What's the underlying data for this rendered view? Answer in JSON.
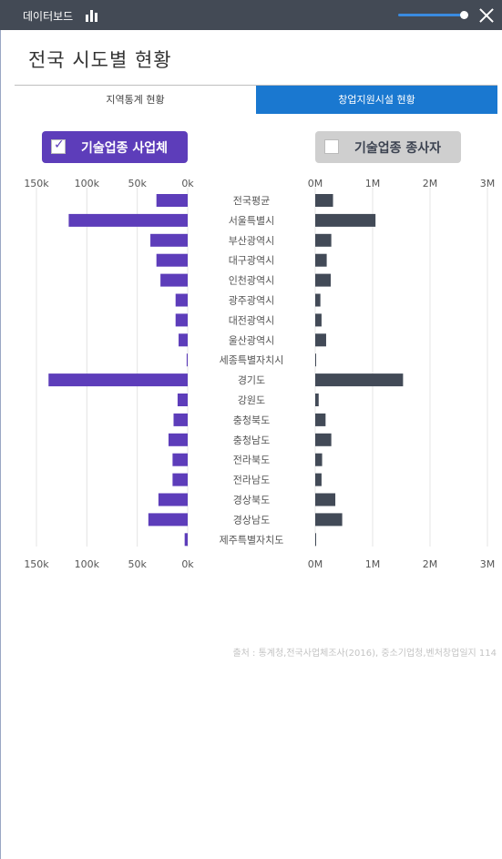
{
  "app": {
    "title": "데이터보드",
    "icon": "bar-chart-icon",
    "zoom_level": 0.9
  },
  "page": {
    "title": "전국 시도별 현황"
  },
  "tabs": [
    {
      "label": "지역통계 현황",
      "active": false
    },
    {
      "label": "창업지원시설 현황",
      "active": true
    }
  ],
  "toggles": {
    "left": {
      "label": "기술업종 사업체",
      "checked": true
    },
    "right": {
      "label": "기술업종 종사자",
      "checked": false
    }
  },
  "colors": {
    "accent": "#1a78d0",
    "business": "#5d3dba",
    "workers": "#424a57",
    "topbar": "#434a55"
  },
  "chart_data": {
    "type": "bar",
    "orientation": "horizontal",
    "grid": true,
    "categories": [
      "전국평균",
      "서울특별시",
      "부산광역시",
      "대구광역시",
      "인천광역시",
      "광주광역시",
      "대전광역시",
      "울산광역시",
      "세종특별자치시",
      "경기도",
      "강원도",
      "충청북도",
      "충청남도",
      "전라북도",
      "전라남도",
      "경상북도",
      "경상남도",
      "제주특별자치도"
    ],
    "left": {
      "series_name": "기술업종 사업체",
      "xlim": [
        150000,
        0
      ],
      "ticks": [
        150000,
        100000,
        50000,
        0
      ],
      "tick_labels": [
        "150k",
        "100k",
        "50k",
        "0k"
      ],
      "values": [
        31000,
        118000,
        37000,
        31000,
        27000,
        12000,
        12000,
        9000,
        1000,
        138000,
        10000,
        14000,
        19000,
        15000,
        15000,
        29000,
        39000,
        3000
      ]
    },
    "right": {
      "series_name": "기술업종 종사자",
      "xlim": [
        0,
        3000000
      ],
      "ticks": [
        0,
        1000000,
        2000000,
        3000000
      ],
      "tick_labels": [
        "0M",
        "1M",
        "2M",
        "3M"
      ],
      "values": [
        310000,
        1050000,
        280000,
        200000,
        270000,
        90000,
        110000,
        190000,
        5000,
        1530000,
        60000,
        180000,
        280000,
        120000,
        110000,
        350000,
        470000,
        10000
      ]
    }
  },
  "source": "출처 : 통계청,전국사업체조사(2016), 중소기업청,벤처창업일지 114"
}
